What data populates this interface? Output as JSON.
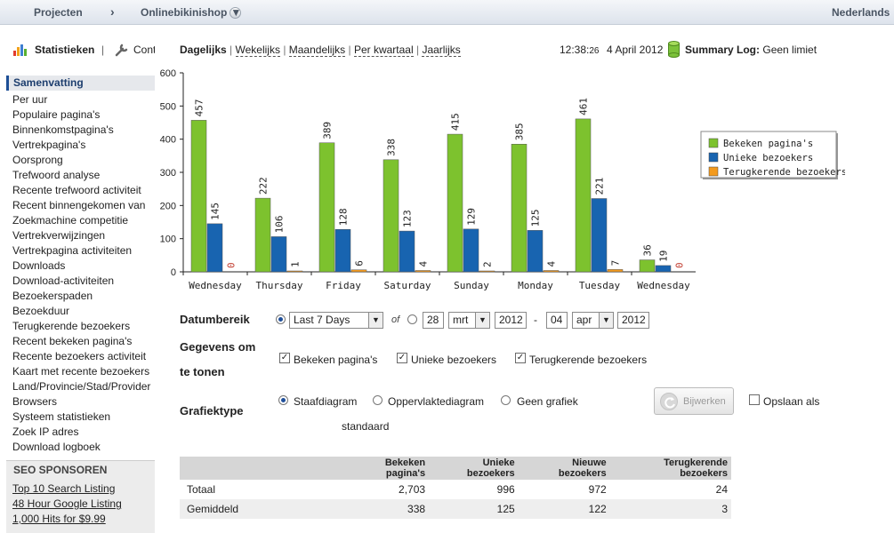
{
  "topbar": {
    "projects": "Projecten",
    "chevron": "›",
    "project_name": "Onlinebikinishop",
    "language": "Nederlands"
  },
  "tabs": {
    "stats": "Statistieken",
    "separator": "|",
    "config": "Cont"
  },
  "nav": {
    "daily": "Dagelijks",
    "weekly": "Wekelijks",
    "monthly": "Maandelijks",
    "quarterly": "Per kwartaal",
    "yearly": "Jaarlijks",
    "time": "12:38:",
    "time_sec": "26",
    "date": "4 April 2012",
    "log_label": "Summary Log:",
    "log_value": "Geen limiet"
  },
  "sidebar": {
    "heading": "Samenvatting",
    "items": [
      "Per uur",
      "Populaire pagina's",
      "Binnenkomstpagina's",
      "Vertrekpagina's",
      "Oorsprong",
      "Trefwoord analyse",
      "Recente trefwoord activiteit",
      "Recent binnengekomen van",
      "Zoekmachine competitie",
      "Vertrekverwijzingen",
      "Vertrekpagina activiteiten",
      "Downloads",
      "Download-activiteiten",
      "Bezoekerspaden",
      "Bezoekduur",
      "Terugkerende bezoekers",
      "Recent bekeken pagina's",
      "Recente bezoekers activiteit",
      "Kaart met recente bezoekers",
      "Land/Provincie/Stad/Provider",
      "Browsers",
      "Systeem statistieken",
      "Zoek IP adres",
      "Download logboek"
    ],
    "seo_heading": "SEO SPONSOREN",
    "seo_links": [
      "Top 10 Search Listing",
      "48 Hour Google Listing",
      "1,000 Hits for $9.99"
    ]
  },
  "chart_data": {
    "type": "bar",
    "categories": [
      "Wednesday",
      "Thursday",
      "Friday",
      "Saturday",
      "Sunday",
      "Monday",
      "Tuesday",
      "Wednesday"
    ],
    "series": [
      {
        "name": "Bekeken pagina's",
        "color": "#7dc22e",
        "values": [
          457,
          222,
          389,
          338,
          415,
          385,
          461,
          36
        ]
      },
      {
        "name": "Unieke bezoekers",
        "color": "#1864b0",
        "values": [
          145,
          106,
          128,
          123,
          129,
          125,
          221,
          19
        ]
      },
      {
        "name": "Terugkerende bezoekers",
        "color": "#f39a1d",
        "values": [
          0,
          1,
          6,
          4,
          2,
          4,
          7,
          0
        ]
      }
    ],
    "yticks": [
      "0",
      "100",
      "200",
      "300",
      "400",
      "500",
      "600"
    ],
    "ylim": [
      0,
      600
    ],
    "legend": "right"
  },
  "form": {
    "date_label": "Datumbereik",
    "range_value": "Last 7 Days",
    "of": "of",
    "from_day": "28",
    "from_month": "mrt",
    "from_year": "2012",
    "dash": "-",
    "to_day": "04",
    "to_month": "apr",
    "to_year": "2012",
    "data_label_1": "Gegevens om",
    "data_label_2": "te tonen",
    "cb_views": "Bekeken pagina's",
    "cb_unique": "Unieke bezoekers",
    "cb_returning": "Terugkerende bezoekers",
    "graph_label": "Grafiektype",
    "opt_bar": "Staafdiagram",
    "opt_area": "Oppervlaktediagram",
    "opt_none": "Geen grafiek",
    "update_btn": "Bijwerken",
    "save_label": "Opslaan als",
    "save_label_2": "standaard"
  },
  "table": {
    "headers": [
      "",
      "Bekeken pagina's",
      "Unieke bezoekers",
      "Nieuwe bezoekers",
      "Terugkerende bezoekers"
    ],
    "rows": [
      [
        "Totaal",
        "2,703",
        "996",
        "972",
        "24"
      ],
      [
        "Gemiddeld",
        "338",
        "125",
        "122",
        "3"
      ]
    ]
  }
}
